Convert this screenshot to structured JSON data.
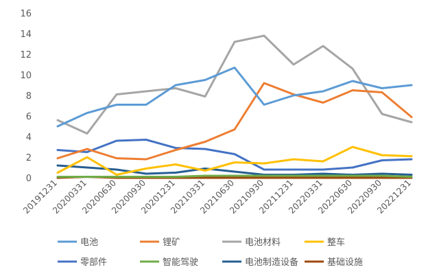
{
  "chart_data": {
    "type": "line",
    "categories": [
      "20191231",
      "20200331",
      "20200630",
      "20200930",
      "20201231",
      "20210331",
      "20210630",
      "20210930",
      "20211231",
      "20220331",
      "20220630",
      "20220930",
      "20221231"
    ],
    "ylim": [
      0,
      16
    ],
    "yticks": [
      0,
      2,
      4,
      6,
      8,
      10,
      12,
      14,
      16
    ],
    "grid": false,
    "legend_position": "bottom",
    "series": [
      {
        "name": "电池",
        "color": "#5b9bd5",
        "values": [
          5.0,
          6.3,
          7.1,
          7.1,
          9.0,
          9.5,
          10.7,
          7.1,
          8.0,
          8.4,
          9.4,
          8.7,
          9.0
        ]
      },
      {
        "name": "锂矿",
        "color": "#ed7d31",
        "values": [
          1.9,
          2.8,
          1.9,
          1.8,
          2.7,
          3.5,
          4.7,
          9.2,
          8.1,
          7.3,
          8.5,
          8.3,
          5.9
        ]
      },
      {
        "name": "电池材料",
        "color": "#a5a5a5",
        "values": [
          5.6,
          4.3,
          8.1,
          8.4,
          8.7,
          7.9,
          13.2,
          13.8,
          11.0,
          12.8,
          10.6,
          6.2,
          5.4
        ]
      },
      {
        "name": "整车",
        "color": "#ffc000",
        "values": [
          0.5,
          2.0,
          0.3,
          0.9,
          1.3,
          0.7,
          1.5,
          1.4,
          1.8,
          1.6,
          3.0,
          2.2,
          2.1
        ]
      },
      {
        "name": "零部件",
        "color": "#4472c4",
        "values": [
          2.7,
          2.5,
          3.6,
          3.7,
          2.9,
          2.8,
          2.3,
          0.8,
          0.8,
          0.8,
          1.0,
          1.7,
          1.8
        ]
      },
      {
        "name": "智能驾驶",
        "color": "#70ad47",
        "values": [
          0.1,
          0.1,
          0.1,
          0.1,
          0.1,
          0.2,
          0.2,
          0.2,
          0.2,
          0.2,
          0.2,
          0.2,
          0.1
        ]
      },
      {
        "name": "电池制造设备",
        "color": "#255e91",
        "values": [
          1.2,
          1.0,
          0.8,
          0.4,
          0.5,
          0.9,
          0.6,
          0.3,
          0.3,
          0.4,
          0.3,
          0.4,
          0.3
        ]
      },
      {
        "name": "基础设施",
        "color": "#9e480e",
        "values": [
          0.0,
          0.1,
          0.0,
          0.0,
          0.0,
          0.0,
          0.0,
          0.0,
          0.0,
          0.0,
          0.0,
          0.0,
          0.0
        ]
      }
    ]
  }
}
